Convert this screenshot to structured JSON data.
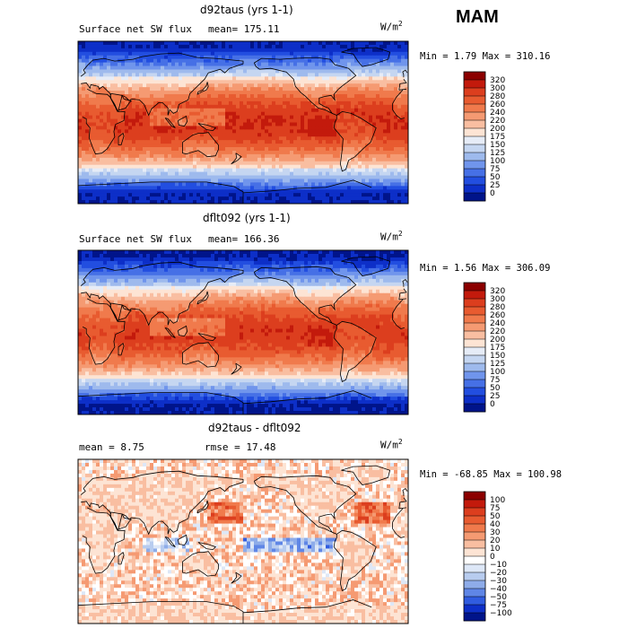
{
  "season": "MAM",
  "chart_data": [
    {
      "type": "heatmap",
      "title": "d92taus (yrs 1-1)",
      "left_label": "Surface net SW flux",
      "stat_label": "mean=",
      "stat_value": "175.11",
      "units": "W/m",
      "units_sup": "2",
      "min_label": "Min =",
      "min_value": "1.79",
      "max_label": "Max =",
      "max_value": "310.16",
      "levels": [
        "320",
        "300",
        "280",
        "260",
        "240",
        "220",
        "200",
        "175",
        "150",
        "125",
        "100",
        "75",
        "50",
        "25",
        "0"
      ],
      "colors": [
        "#8b0000",
        "#c31a0c",
        "#dc3e1e",
        "#e85b30",
        "#f07a4c",
        "#f59a72",
        "#f9bea1",
        "#fde4d4",
        "#e6ecf7",
        "#c5d6f1",
        "#9ebaed",
        "#7095ec",
        "#4670e6",
        "#224ee0",
        "#0d2fc8",
        "#00148a"
      ],
      "field": "absolute"
    },
    {
      "type": "heatmap",
      "title": "dflt092 (yrs 1-1)",
      "left_label": "Surface net SW flux",
      "stat_label": "mean=",
      "stat_value": "166.36",
      "units": "W/m",
      "units_sup": "2",
      "min_label": "Min =",
      "min_value": "1.56",
      "max_label": "Max =",
      "max_value": "306.09",
      "levels": [
        "320",
        "300",
        "280",
        "260",
        "240",
        "220",
        "200",
        "175",
        "150",
        "125",
        "100",
        "75",
        "50",
        "25",
        "0"
      ],
      "colors": [
        "#8b0000",
        "#c31a0c",
        "#dc3e1e",
        "#e85b30",
        "#f07a4c",
        "#f59a72",
        "#f9bea1",
        "#fde4d4",
        "#e6ecf7",
        "#c5d6f1",
        "#9ebaed",
        "#7095ec",
        "#4670e6",
        "#224ee0",
        "#0d2fc8",
        "#00148a"
      ],
      "field": "absolute"
    },
    {
      "type": "heatmap",
      "title": "d92taus - dflt092",
      "left_label": "mean =",
      "left_value": "8.75",
      "stat_label": "rmse =",
      "stat_value": "17.48",
      "units": "W/m",
      "units_sup": "2",
      "min_label": "Min =",
      "min_value": "-68.85",
      "max_label": "Max =",
      "max_value": "100.98",
      "levels": [
        "100",
        "75",
        "50",
        "40",
        "30",
        "20",
        "10",
        "0",
        "−10",
        "−20",
        "−30",
        "−40",
        "−50",
        "−75",
        "−100"
      ],
      "colors": [
        "#8b0000",
        "#c31a0c",
        "#dc3e1e",
        "#e85b30",
        "#f07a4c",
        "#f59a72",
        "#f9bea1",
        "#fde4d4",
        "#ffffff",
        "#dde7f7",
        "#b8ccef",
        "#8eace9",
        "#5f86e6",
        "#305ce0",
        "#0d2fc8",
        "#00148a"
      ],
      "field": "difference"
    }
  ]
}
